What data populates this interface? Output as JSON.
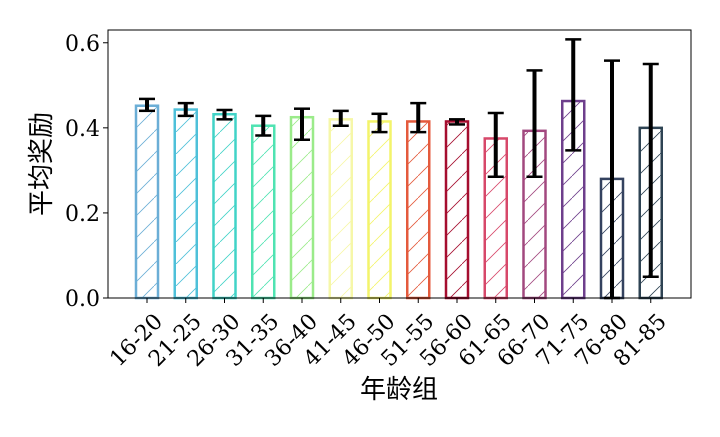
{
  "chart_data": {
    "type": "bar",
    "title": "",
    "xlabel": "年龄组",
    "ylabel": "平均奖励",
    "ylim": [
      0.0,
      0.63
    ],
    "yticks": [
      "0.0",
      "0.2",
      "0.4",
      "0.6"
    ],
    "ytick_values": [
      0.0,
      0.2,
      0.4,
      0.6
    ],
    "grid": false,
    "legend": "none",
    "hatch": "diagonal",
    "categories": [
      "16-20",
      "21-25",
      "26-30",
      "31-35",
      "36-40",
      "41-45",
      "46-50",
      "51-55",
      "56-60",
      "61-65",
      "66-70",
      "71-75",
      "76-80",
      "81-85"
    ],
    "values": [
      0.452,
      0.443,
      0.432,
      0.405,
      0.425,
      0.42,
      0.415,
      0.415,
      0.415,
      0.375,
      0.393,
      0.463,
      0.28,
      0.4
    ],
    "error_low": [
      0.44,
      0.428,
      0.42,
      0.382,
      0.372,
      0.405,
      0.39,
      0.39,
      0.408,
      0.285,
      0.285,
      0.347,
      0.0,
      0.05
    ],
    "error_high": [
      0.468,
      0.458,
      0.442,
      0.428,
      0.445,
      0.44,
      0.433,
      0.458,
      0.42,
      0.435,
      0.535,
      0.608,
      0.558,
      0.55
    ],
    "colors": [
      "#6baed6",
      "#4ec0d9",
      "#41d3c7",
      "#4fe3b2",
      "#9beb8a",
      "#f6f7a8",
      "#f3f46a",
      "#e45a3c",
      "#a50d2f",
      "#d7486a",
      "#a2487f",
      "#6e3f8c",
      "#34425f",
      "#2e4353"
    ]
  }
}
